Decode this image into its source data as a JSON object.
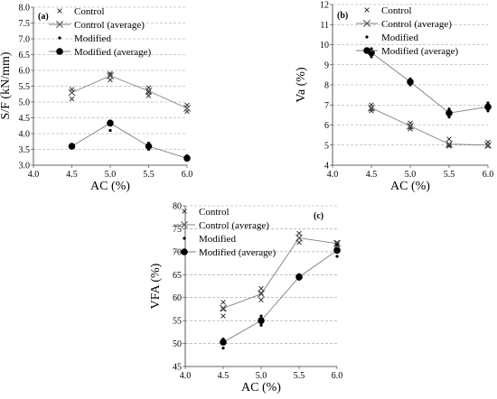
{
  "chart_data": [
    {
      "type": "line",
      "panel_label": "(a)",
      "xlabel": "AC (%)",
      "ylabel": "S/F (kN/mm)",
      "xlim": [
        4.0,
        6.0
      ],
      "ylim": [
        3.0,
        8.0
      ],
      "xticks": [
        "4.0",
        "4.5",
        "5.0",
        "5.5",
        "6.0"
      ],
      "yticks": [
        "3.0",
        "3.5",
        "4.0",
        "4.5",
        "5.0",
        "5.5",
        "6.0",
        "6.5",
        "7.0",
        "7.5",
        "8.0"
      ],
      "grid": "horizontal dashed",
      "legend_placement": "top-left",
      "series": [
        {
          "name": "Control",
          "marker": "x",
          "line": false,
          "points": [
            [
              4.5,
              5.4
            ],
            [
              4.5,
              5.3
            ],
            [
              4.5,
              5.1
            ],
            [
              5.0,
              5.9
            ],
            [
              5.0,
              5.85
            ],
            [
              5.0,
              5.7
            ],
            [
              5.5,
              5.45
            ],
            [
              5.5,
              5.3
            ],
            [
              5.5,
              5.2
            ],
            [
              6.0,
              4.9
            ],
            [
              6.0,
              4.8
            ],
            [
              6.0,
              4.7
            ]
          ]
        },
        {
          "name": "Control (average)",
          "marker": "x-large",
          "line": true,
          "points": [
            [
              4.5,
              5.3
            ],
            [
              5.0,
              5.83
            ],
            [
              5.5,
              5.35
            ],
            [
              6.0,
              4.8
            ]
          ]
        },
        {
          "name": "Modified",
          "marker": "dot",
          "line": false,
          "points": [
            [
              4.5,
              3.6
            ],
            [
              4.5,
              3.55
            ],
            [
              5.0,
              4.4
            ],
            [
              5.0,
              4.1
            ],
            [
              5.5,
              3.7
            ],
            [
              5.5,
              3.5
            ],
            [
              6.0,
              3.3
            ],
            [
              6.0,
              3.2
            ]
          ]
        },
        {
          "name": "Modified (average)",
          "marker": "dot-large",
          "line": true,
          "points": [
            [
              4.5,
              3.6
            ],
            [
              5.0,
              4.33
            ],
            [
              5.5,
              3.6
            ],
            [
              6.0,
              3.22
            ]
          ]
        }
      ]
    },
    {
      "type": "line",
      "panel_label": "(b)",
      "xlabel": "AC (%)",
      "ylabel": "Va (%)",
      "xlim": [
        4.0,
        6.0
      ],
      "ylim": [
        4,
        12
      ],
      "xticks": [
        "4.0",
        "4.5",
        "5.0",
        "5.5",
        "6.0"
      ],
      "yticks": [
        "4",
        "5",
        "6",
        "7",
        "8",
        "9",
        "10",
        "11",
        "12"
      ],
      "grid": "horizontal dashed",
      "legend_placement": "top-right",
      "series": [
        {
          "name": "Control",
          "marker": "x",
          "line": false,
          "points": [
            [
              4.5,
              7.0
            ],
            [
              4.5,
              6.8
            ],
            [
              4.5,
              6.7
            ],
            [
              5.0,
              6.1
            ],
            [
              5.0,
              5.9
            ],
            [
              5.0,
              5.8
            ],
            [
              5.5,
              5.3
            ],
            [
              5.5,
              5.0
            ],
            [
              5.5,
              4.95
            ],
            [
              6.0,
              5.15
            ],
            [
              6.0,
              5.0
            ],
            [
              6.0,
              4.95
            ]
          ]
        },
        {
          "name": "Control (average)",
          "marker": "x-large",
          "line": true,
          "points": [
            [
              4.5,
              6.85
            ],
            [
              5.0,
              5.95
            ],
            [
              5.5,
              5.05
            ],
            [
              6.0,
              5.0
            ]
          ]
        },
        {
          "name": "Modified",
          "marker": "dot",
          "line": false,
          "points": [
            [
              4.5,
              9.8
            ],
            [
              4.5,
              9.4
            ],
            [
              5.0,
              8.3
            ],
            [
              5.0,
              8.0
            ],
            [
              5.5,
              6.8
            ],
            [
              5.5,
              6.4
            ],
            [
              6.0,
              7.1
            ],
            [
              6.0,
              6.7
            ]
          ]
        },
        {
          "name": "Modified (average)",
          "marker": "dot-large",
          "line": true,
          "points": [
            [
              4.5,
              9.6
            ],
            [
              5.0,
              8.15
            ],
            [
              5.5,
              6.6
            ],
            [
              6.0,
              6.9
            ]
          ]
        }
      ]
    },
    {
      "type": "line",
      "panel_label": "(c)",
      "xlabel": "AC (%)",
      "ylabel": "VFA (%)",
      "xlim": [
        4.0,
        6.0
      ],
      "ylim": [
        45,
        80
      ],
      "xticks": [
        "4.0",
        "4.5",
        "5.0",
        "5.5",
        "6.0"
      ],
      "yticks": [
        "45",
        "50",
        "55",
        "60",
        "65",
        "70",
        "75",
        "80"
      ],
      "grid": "horizontal dashed",
      "legend_placement": "top-left",
      "series": [
        {
          "name": "Control",
          "marker": "x",
          "line": false,
          "points": [
            [
              4.5,
              59.0
            ],
            [
              4.5,
              57.5
            ],
            [
              4.5,
              56.0
            ],
            [
              5.0,
              62.0
            ],
            [
              5.0,
              61.0
            ],
            [
              5.0,
              59.5
            ],
            [
              5.5,
              74.0
            ],
            [
              5.5,
              73.0
            ],
            [
              5.5,
              72.0
            ],
            [
              6.0,
              72.0
            ],
            [
              6.0,
              71.8
            ],
            [
              6.0,
              71.5
            ]
          ]
        },
        {
          "name": "Control (average)",
          "marker": "x-large",
          "line": true,
          "points": [
            [
              4.5,
              57.7
            ],
            [
              5.0,
              60.8
            ],
            [
              5.5,
              73.0
            ],
            [
              6.0,
              71.8
            ]
          ]
        },
        {
          "name": "Modified",
          "marker": "dot",
          "line": false,
          "points": [
            [
              4.5,
              51.0
            ],
            [
              4.5,
              49.0
            ],
            [
              5.0,
              56.0
            ],
            [
              5.0,
              54.0
            ],
            [
              5.5,
              65.0
            ],
            [
              5.5,
              64.0
            ],
            [
              6.0,
              71.5
            ],
            [
              6.0,
              69.0
            ]
          ]
        },
        {
          "name": "Modified (average)",
          "marker": "dot-large",
          "line": true,
          "points": [
            [
              4.5,
              50.3
            ],
            [
              5.0,
              55.0
            ],
            [
              5.5,
              64.5
            ],
            [
              6.0,
              70.3
            ]
          ]
        }
      ]
    }
  ]
}
